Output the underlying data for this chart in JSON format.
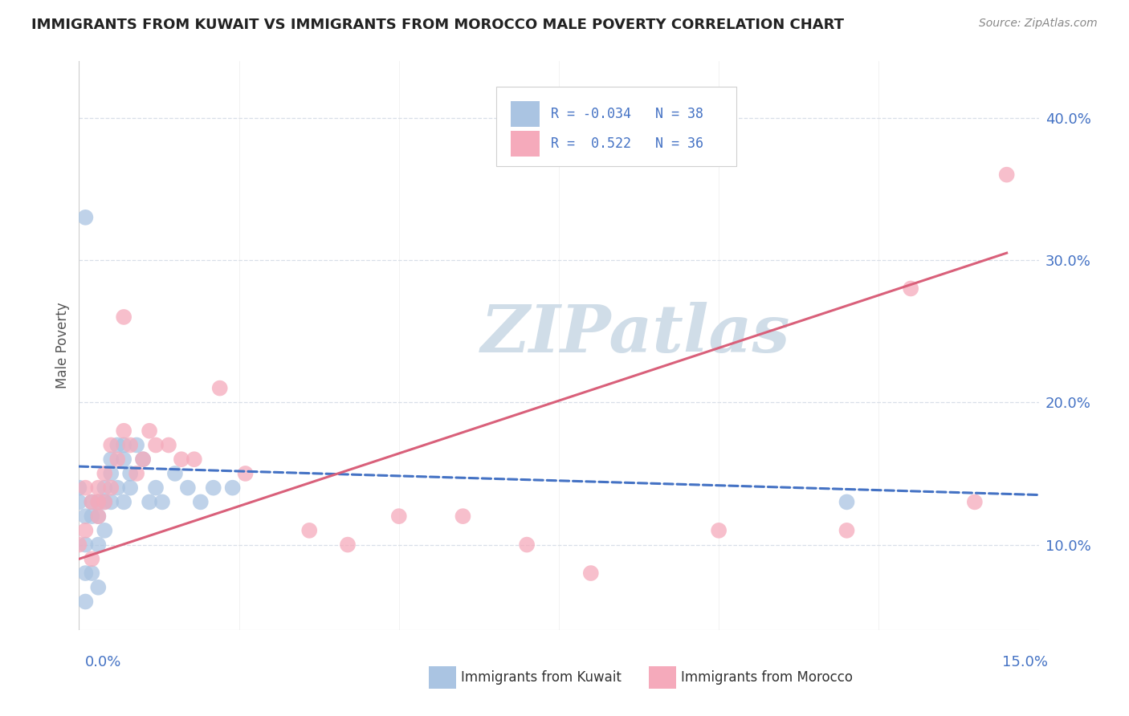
{
  "title": "IMMIGRANTS FROM KUWAIT VS IMMIGRANTS FROM MOROCCO MALE POVERTY CORRELATION CHART",
  "source": "Source: ZipAtlas.com",
  "ylabel": "Male Poverty",
  "xlim": [
    0.0,
    0.15
  ],
  "ylim": [
    0.04,
    0.44
  ],
  "y_ticks_right": [
    0.1,
    0.2,
    0.3,
    0.4
  ],
  "y_tick_labels_right": [
    "10.0%",
    "20.0%",
    "30.0%",
    "40.0%"
  ],
  "kuwait_color": "#aac4e2",
  "morocco_color": "#f5aabb",
  "kuwait_line_color": "#4472c4",
  "morocco_line_color": "#d9607a",
  "kuwait_R": -0.034,
  "kuwait_N": 38,
  "morocco_R": 0.522,
  "morocco_N": 36,
  "legend_color": "#4472c4",
  "watermark": "ZIPatlas",
  "watermark_color": "#d0dde8",
  "kuwait_x": [
    0.0,
    0.0,
    0.001,
    0.001,
    0.001,
    0.001,
    0.002,
    0.002,
    0.002,
    0.003,
    0.003,
    0.003,
    0.003,
    0.004,
    0.004,
    0.004,
    0.005,
    0.005,
    0.005,
    0.006,
    0.006,
    0.007,
    0.007,
    0.007,
    0.008,
    0.008,
    0.009,
    0.01,
    0.011,
    0.012,
    0.013,
    0.015,
    0.017,
    0.019,
    0.021,
    0.024,
    0.12,
    0.001
  ],
  "kuwait_y": [
    0.14,
    0.13,
    0.12,
    0.1,
    0.08,
    0.06,
    0.13,
    0.12,
    0.08,
    0.13,
    0.12,
    0.1,
    0.07,
    0.14,
    0.13,
    0.11,
    0.16,
    0.15,
    0.13,
    0.17,
    0.14,
    0.17,
    0.16,
    0.13,
    0.15,
    0.14,
    0.17,
    0.16,
    0.13,
    0.14,
    0.13,
    0.15,
    0.14,
    0.13,
    0.14,
    0.14,
    0.13,
    0.33
  ],
  "morocco_x": [
    0.0,
    0.001,
    0.002,
    0.002,
    0.003,
    0.003,
    0.004,
    0.004,
    0.005,
    0.005,
    0.006,
    0.007,
    0.007,
    0.008,
    0.009,
    0.01,
    0.011,
    0.012,
    0.014,
    0.016,
    0.018,
    0.022,
    0.026,
    0.036,
    0.042,
    0.05,
    0.06,
    0.07,
    0.08,
    0.1,
    0.12,
    0.13,
    0.14,
    0.145,
    0.001,
    0.003
  ],
  "morocco_y": [
    0.1,
    0.11,
    0.13,
    0.09,
    0.14,
    0.12,
    0.15,
    0.13,
    0.17,
    0.14,
    0.16,
    0.26,
    0.18,
    0.17,
    0.15,
    0.16,
    0.18,
    0.17,
    0.17,
    0.16,
    0.16,
    0.21,
    0.15,
    0.11,
    0.1,
    0.12,
    0.12,
    0.1,
    0.08,
    0.11,
    0.11,
    0.28,
    0.13,
    0.36,
    0.14,
    0.13
  ],
  "grid_color": "#d8dfe8",
  "background_color": "#ffffff",
  "title_color": "#222222",
  "title_fontsize": 13,
  "tick_label_color": "#4472c4"
}
